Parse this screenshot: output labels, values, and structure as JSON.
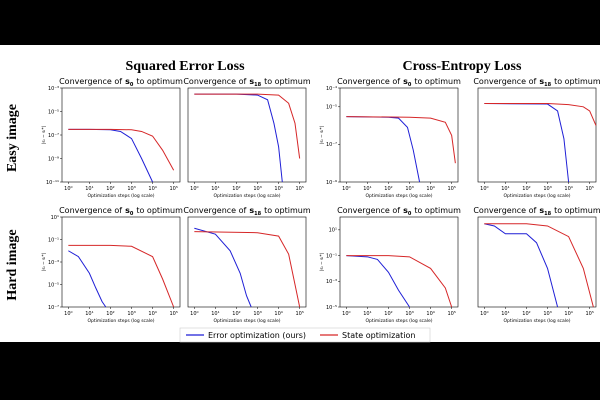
{
  "column_titles": [
    "Squared Error Loss",
    "Cross-Entropy Loss"
  ],
  "row_titles": [
    "Easy image",
    "Hard image"
  ],
  "chart_data": [
    {
      "type": "line",
      "title": {
        "prefix": "Convergence of",
        "symbol": "s",
        "subscript": "0",
        "suffix": "to optimum"
      },
      "xlabel": "Optimization steps (log scale)",
      "ylabel": "|sᵢ − sᵢ*|",
      "log_x": true,
      "log_y": true,
      "xlim": [
        0.5,
        200000
      ],
      "ylim": [
        1e-11,
        0.001
      ],
      "xticks": [
        {
          "value": 1,
          "label": "10⁰"
        },
        {
          "value": 10,
          "label": "10¹"
        },
        {
          "value": 100,
          "label": "10²"
        },
        {
          "value": 1000,
          "label": "10³"
        },
        {
          "value": 10000,
          "label": "10⁴"
        },
        {
          "value": 100000,
          "label": "10⁵"
        }
      ],
      "yticks": [
        {
          "value": 0.001,
          "label": "10⁻³"
        },
        {
          "value": 1e-05,
          "label": "10⁻⁵"
        },
        {
          "value": 1e-07,
          "label": "10⁻⁷"
        },
        {
          "value": 1e-09,
          "label": "10⁻⁹"
        },
        {
          "value": 1e-11,
          "label": "10⁻¹¹"
        }
      ],
      "series": [
        {
          "name": "Error optimization (ours)",
          "color": "#1f1fd6",
          "x": [
            1,
            10,
            100,
            300,
            1000,
            3000,
            10000
          ],
          "values": [
            3e-07,
            3e-07,
            2.8e-07,
            2e-07,
            5e-08,
            1e-09,
            1e-11
          ]
        },
        {
          "name": "State optimization",
          "color": "#d62728",
          "x": [
            1,
            100,
            1000,
            3000,
            10000,
            30000,
            100000
          ],
          "values": [
            3e-07,
            3e-07,
            2.8e-07,
            2e-07,
            8e-08,
            5e-09,
            1e-10
          ]
        }
      ]
    },
    {
      "type": "line",
      "title": {
        "prefix": "Convergence of",
        "symbol": "s",
        "subscript": "18",
        "suffix": "to optimum"
      },
      "xlabel": "Optimization steps (log scale)",
      "log_x": true,
      "log_y": true,
      "xlim": [
        0.5,
        200000
      ],
      "ylim": [
        1e-11,
        0.001
      ],
      "xticks": [
        {
          "value": 1,
          "label": "10⁰"
        },
        {
          "value": 10,
          "label": "10¹"
        },
        {
          "value": 100,
          "label": "10²"
        },
        {
          "value": 1000,
          "label": "10³"
        },
        {
          "value": 10000,
          "label": "10⁴"
        },
        {
          "value": 100000,
          "label": "10⁵"
        }
      ],
      "series": [
        {
          "name": "Error optimization (ours)",
          "color": "#1f1fd6",
          "x": [
            1,
            100,
            1000,
            3000,
            6000,
            10000,
            15000
          ],
          "values": [
            0.0003,
            0.0003,
            0.00025,
            0.0001,
            1e-06,
            1e-08,
            1e-11
          ]
        },
        {
          "name": "State optimization",
          "color": "#d62728",
          "x": [
            1,
            1000,
            10000,
            30000,
            60000,
            100000
          ],
          "values": [
            0.0003,
            0.0003,
            0.00025,
            5e-05,
            1e-06,
            1e-09
          ]
        }
      ]
    },
    {
      "type": "line",
      "title": {
        "prefix": "Convergence of",
        "symbol": "s",
        "subscript": "0",
        "suffix": "to optimum"
      },
      "xlabel": "Optimization steps (log scale)",
      "ylabel": "|sᵢ − sᵢ*|",
      "log_x": true,
      "log_y": true,
      "xlim": [
        0.5,
        200000
      ],
      "ylim": [
        1e-09,
        0.0001
      ],
      "xticks": [
        {
          "value": 1,
          "label": "10⁰"
        },
        {
          "value": 10,
          "label": "10¹"
        },
        {
          "value": 100,
          "label": "10²"
        },
        {
          "value": 1000,
          "label": "10³"
        },
        {
          "value": 10000,
          "label": "10⁴"
        },
        {
          "value": 100000,
          "label": "10⁵"
        }
      ],
      "yticks": [
        {
          "value": 0.0001,
          "label": "10⁻⁴"
        },
        {
          "value": 1e-05,
          "label": "10⁻⁵"
        },
        {
          "value": 1e-07,
          "label": "10⁻⁷"
        },
        {
          "value": 1e-09,
          "label": "10⁻⁹"
        }
      ],
      "series": [
        {
          "name": "Error optimization (ours)",
          "color": "#1f1fd6",
          "x": [
            1,
            100,
            300,
            800,
            1500,
            3000
          ],
          "values": [
            3e-06,
            2.8e-06,
            2.5e-06,
            8e-07,
            5e-08,
            1e-09
          ]
        },
        {
          "name": "State optimization",
          "color": "#d62728",
          "x": [
            1,
            1000,
            10000,
            50000,
            100000,
            150000
          ],
          "values": [
            3e-06,
            2.8e-06,
            2.5e-06,
            1.5e-06,
            3e-07,
            1e-08
          ]
        }
      ]
    },
    {
      "type": "line",
      "title": {
        "prefix": "Convergence of",
        "symbol": "s",
        "subscript": "18",
        "suffix": "to optimum"
      },
      "xlabel": "Optimization steps (log scale)",
      "log_x": true,
      "log_y": true,
      "xlim": [
        0.5,
        200000
      ],
      "ylim": [
        1e-09,
        0.0001
      ],
      "xticks": [
        {
          "value": 1,
          "label": "10⁰"
        },
        {
          "value": 10,
          "label": "10¹"
        },
        {
          "value": 100,
          "label": "10²"
        },
        {
          "value": 1000,
          "label": "10³"
        },
        {
          "value": 10000,
          "label": "10⁴"
        },
        {
          "value": 100000,
          "label": "10⁵"
        }
      ],
      "series": [
        {
          "name": "Error optimization (ours)",
          "color": "#1f1fd6",
          "x": [
            1,
            1000,
            3000,
            6000,
            10000
          ],
          "values": [
            1.5e-05,
            1.4e-05,
            6e-06,
            2e-07,
            1e-09
          ]
        },
        {
          "name": "State optimization",
          "color": "#d62728",
          "x": [
            1,
            1000,
            10000,
            50000,
            100000,
            200000
          ],
          "values": [
            1.5e-05,
            1.5e-05,
            1.3e-05,
            1e-05,
            6e-06,
            1e-06
          ]
        }
      ]
    },
    {
      "type": "line",
      "title": {
        "prefix": "Convergence of",
        "symbol": "s",
        "subscript": "0",
        "suffix": "to optimum"
      },
      "xlabel": "Optimization steps (log scale)",
      "ylabel": "|sᵢ − sᵢ*|",
      "log_x": true,
      "log_y": true,
      "xlim": [
        0.5,
        200000
      ],
      "ylim": [
        1e-07,
        10
      ],
      "xticks": [
        {
          "value": 1,
          "label": "10⁰"
        },
        {
          "value": 10,
          "label": "10¹"
        },
        {
          "value": 100,
          "label": "10²"
        },
        {
          "value": 1000,
          "label": "10³"
        },
        {
          "value": 10000,
          "label": "10⁴"
        },
        {
          "value": 100000,
          "label": "10⁵"
        }
      ],
      "yticks": [
        {
          "value": 10,
          "label": "10¹"
        },
        {
          "value": 0.1,
          "label": "10⁻¹"
        },
        {
          "value": 0.001,
          "label": "10⁻³"
        },
        {
          "value": 1e-05,
          "label": "10⁻⁵"
        },
        {
          "value": 1e-07,
          "label": "10⁻⁷"
        }
      ],
      "series": [
        {
          "name": "Error optimization (ours)",
          "color": "#1f1fd6",
          "x": [
            1,
            3,
            10,
            20,
            40,
            60
          ],
          "values": [
            0.01,
            0.003,
            0.0001,
            5e-06,
            3e-07,
            1e-07
          ]
        },
        {
          "name": "State optimization",
          "color": "#d62728",
          "x": [
            1,
            100,
            1000,
            10000,
            30000,
            100000
          ],
          "values": [
            0.03,
            0.03,
            0.025,
            0.003,
            3e-05,
            1e-07
          ]
        }
      ]
    },
    {
      "type": "line",
      "title": {
        "prefix": "Convergence of",
        "symbol": "s",
        "subscript": "18",
        "suffix": "to optimum"
      },
      "xlabel": "Optimization steps (log scale)",
      "log_x": true,
      "log_y": true,
      "xlim": [
        0.5,
        200000
      ],
      "ylim": [
        1e-07,
        10
      ],
      "xticks": [
        {
          "value": 1,
          "label": "10⁰"
        },
        {
          "value": 10,
          "label": "10¹"
        },
        {
          "value": 100,
          "label": "10²"
        },
        {
          "value": 1000,
          "label": "10³"
        },
        {
          "value": 10000,
          "label": "10⁴"
        },
        {
          "value": 100000,
          "label": "10⁵"
        }
      ],
      "series": [
        {
          "name": "Error optimization (ours)",
          "color": "#1f1fd6",
          "x": [
            1,
            10,
            50,
            150,
            300,
            500
          ],
          "values": [
            1,
            0.3,
            0.01,
            0.0001,
            1e-06,
            1e-07
          ]
        },
        {
          "name": "State optimization",
          "color": "#d62728",
          "x": [
            1,
            1000,
            10000,
            30000,
            60000,
            100000
          ],
          "values": [
            0.5,
            0.4,
            0.2,
            0.005,
            1e-05,
            1e-07
          ]
        }
      ]
    },
    {
      "type": "line",
      "title": {
        "prefix": "Convergence of",
        "symbol": "s",
        "subscript": "0",
        "suffix": "to optimum"
      },
      "xlabel": "Optimization steps (log scale)",
      "ylabel": "|sᵢ − sᵢ*|",
      "log_x": true,
      "log_y": true,
      "xlim": [
        0.5,
        200000
      ],
      "ylim": [
        1e-05,
        100
      ],
      "xticks": [
        {
          "value": 1,
          "label": "10⁰"
        },
        {
          "value": 10,
          "label": "10¹"
        },
        {
          "value": 100,
          "label": "10²"
        },
        {
          "value": 1000,
          "label": "10³"
        },
        {
          "value": 10000,
          "label": "10⁴"
        },
        {
          "value": 100000,
          "label": "10⁵"
        }
      ],
      "yticks": [
        {
          "value": 10,
          "label": "10¹"
        },
        {
          "value": 0.1,
          "label": "10⁻¹"
        },
        {
          "value": 0.001,
          "label": "10⁻³"
        },
        {
          "value": 1e-05,
          "label": "10⁻⁵"
        }
      ],
      "series": [
        {
          "name": "Error optimization (ours)",
          "color": "#1f1fd6",
          "x": [
            1,
            10,
            30,
            100,
            300,
            1000
          ],
          "values": [
            0.1,
            0.08,
            0.05,
            0.005,
            0.0002,
            1e-05
          ]
        },
        {
          "name": "State optimization",
          "color": "#d62728",
          "x": [
            1,
            100,
            1000,
            10000,
            50000,
            100000
          ],
          "values": [
            0.1,
            0.1,
            0.08,
            0.01,
            0.0003,
            1e-05
          ]
        }
      ]
    },
    {
      "type": "line",
      "title": {
        "prefix": "Convergence of",
        "symbol": "s",
        "subscript": "18",
        "suffix": "to optimum"
      },
      "xlabel": "Optimization steps (log scale)",
      "log_x": true,
      "log_y": true,
      "xlim": [
        0.5,
        200000
      ],
      "ylim": [
        1e-05,
        100
      ],
      "xticks": [
        {
          "value": 1,
          "label": "10⁰"
        },
        {
          "value": 10,
          "label": "10¹"
        },
        {
          "value": 100,
          "label": "10²"
        },
        {
          "value": 1000,
          "label": "10³"
        },
        {
          "value": 10000,
          "label": "10⁴"
        },
        {
          "value": 100000,
          "label": "10⁵"
        }
      ],
      "series": [
        {
          "name": "Error optimization (ours)",
          "color": "#1f1fd6",
          "x": [
            1,
            3,
            10,
            100,
            300,
            1000,
            3000
          ],
          "values": [
            30,
            20,
            5,
            5,
            1,
            0.01,
            1e-05
          ]
        },
        {
          "name": "State optimization",
          "color": "#d62728",
          "x": [
            1,
            100,
            1000,
            10000,
            50000,
            150000
          ],
          "values": [
            30,
            30,
            20,
            3,
            0.01,
            1e-05
          ]
        }
      ]
    }
  ]
}
